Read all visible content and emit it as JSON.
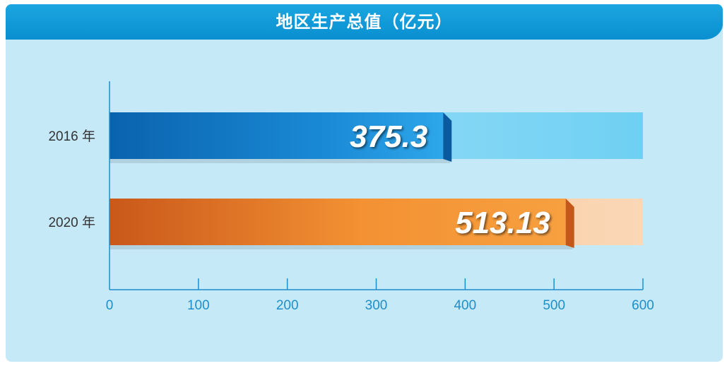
{
  "chart_data": {
    "type": "bar",
    "orientation": "horizontal",
    "title": "地区生产总值（亿元）",
    "categories": [
      "2016 年",
      "2020 年"
    ],
    "values": [
      375.3,
      513.13
    ],
    "value_labels": [
      "375.3",
      "513.13"
    ],
    "xlim": [
      0,
      600
    ],
    "xticks": [
      0,
      100,
      200,
      300,
      400,
      500,
      600
    ],
    "xtick_labels": [
      "0",
      "100",
      "200",
      "300",
      "400",
      "500",
      "600"
    ],
    "grid": false,
    "colors": {
      "banner": "#0a8fd0",
      "panel": "#c6e9f8",
      "axis": "#1e8ecb",
      "series_2016": "#0d6fb8",
      "series_2016_track": "#7fd4f3",
      "series_2020": "#f08a2e",
      "series_2020_track": "#f8c89a"
    }
  }
}
